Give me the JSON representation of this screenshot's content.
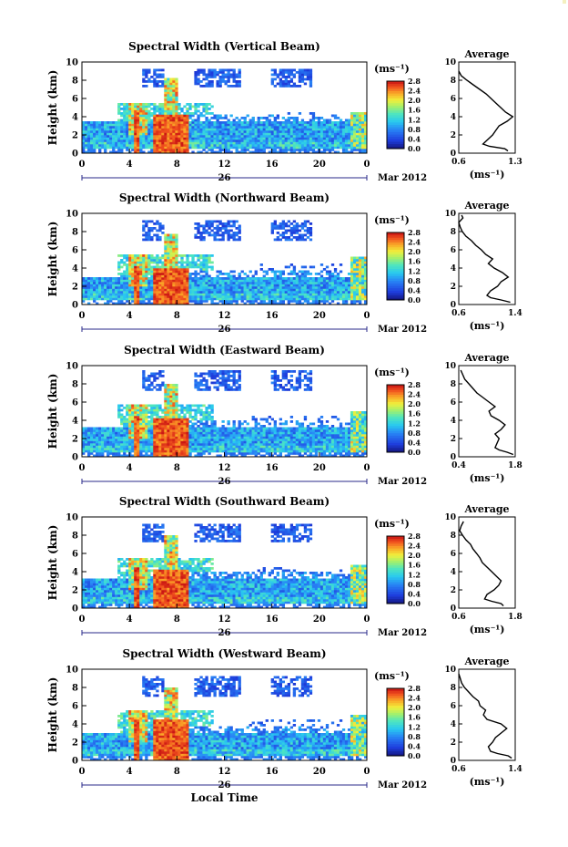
{
  "chart_data": [
    {
      "type": "heatmap",
      "title": "Spectral Width (Vertical Beam)",
      "ylabel": "Height (km)",
      "xlabel": "",
      "x_ticks": [
        "0",
        "4",
        "8",
        "12",
        "16",
        "20",
        "0"
      ],
      "y_ticks": [
        "0",
        "2",
        "4",
        "6",
        "8",
        "10"
      ],
      "xlim": [
        0,
        24
      ],
      "ylim": [
        0,
        10
      ],
      "date_label": "26",
      "month_label": "Mar 2012",
      "colorbar": {
        "unit": "(ms⁻¹)",
        "ticks": [
          "0.0",
          "0.4",
          "0.8",
          "1.2",
          "1.6",
          "2.0",
          "2.4",
          "2.8"
        ],
        "range": [
          0,
          2.8
        ]
      },
      "average": {
        "title": "Average",
        "xlabel": "(ms⁻¹)",
        "x_ticks": [
          "0.6",
          "1.3"
        ],
        "xlim": [
          0.6,
          1.3
        ],
        "y_ticks": [
          "0",
          "2",
          "4",
          "6",
          "8",
          "10"
        ],
        "profile": [
          [
            0.25,
            1.21
          ],
          [
            0.5,
            1.17
          ],
          [
            0.75,
            0.98
          ],
          [
            1.0,
            0.9
          ],
          [
            1.25,
            0.93
          ],
          [
            1.5,
            0.96
          ],
          [
            2.0,
            1.02
          ],
          [
            2.5,
            1.06
          ],
          [
            3.0,
            1.1
          ],
          [
            3.5,
            1.2
          ],
          [
            4.0,
            1.27
          ],
          [
            4.5,
            1.18
          ],
          [
            5.0,
            1.12
          ],
          [
            5.5,
            1.06
          ],
          [
            6.0,
            1.0
          ],
          [
            6.5,
            0.94
          ],
          [
            7.0,
            0.86
          ],
          [
            7.5,
            0.78
          ],
          [
            8.0,
            0.7
          ],
          [
            8.5,
            0.63
          ],
          [
            9.0,
            0.6
          ]
        ]
      },
      "fields": {
        "low_top": 3.4,
        "mid_top": 5.6,
        "high_bottom": 7.2,
        "high_top": 9.3,
        "core_top": 4.2,
        "conv_peak": 8.3,
        "right_top": 4.6
      }
    },
    {
      "type": "heatmap",
      "title": "Spectral Width (Northward Beam)",
      "ylabel": "Height (km)",
      "xlabel": "",
      "x_ticks": [
        "0",
        "4",
        "8",
        "12",
        "16",
        "20",
        "0"
      ],
      "y_ticks": [
        "0",
        "2",
        "4",
        "6",
        "8",
        "10"
      ],
      "xlim": [
        0,
        24
      ],
      "ylim": [
        0,
        10
      ],
      "date_label": "26",
      "month_label": "Mar 2012",
      "colorbar": {
        "unit": "(ms⁻¹)",
        "ticks": [
          "0.0",
          "0.4",
          "0.8",
          "1.2",
          "1.6",
          "2.0",
          "2.4",
          "2.8"
        ],
        "range": [
          0,
          2.8
        ]
      },
      "average": {
        "title": "Average",
        "xlabel": "(ms⁻¹)",
        "x_ticks": [
          "0.6",
          "1.4"
        ],
        "xlim": [
          0.6,
          1.4
        ],
        "y_ticks": [
          "0",
          "2",
          "4",
          "6",
          "8",
          "10"
        ],
        "profile": [
          [
            0.25,
            1.33
          ],
          [
            0.5,
            1.2
          ],
          [
            0.75,
            1.05
          ],
          [
            1.0,
            1.0
          ],
          [
            1.5,
            1.05
          ],
          [
            2.0,
            1.15
          ],
          [
            2.5,
            1.2
          ],
          [
            3.0,
            1.3
          ],
          [
            3.5,
            1.22
          ],
          [
            4.0,
            1.1
          ],
          [
            4.5,
            1.02
          ],
          [
            5.0,
            1.08
          ],
          [
            5.5,
            0.98
          ],
          [
            6.0,
            0.92
          ],
          [
            6.5,
            0.84
          ],
          [
            7.0,
            0.78
          ],
          [
            7.5,
            0.7
          ],
          [
            8.0,
            0.65
          ],
          [
            8.5,
            0.62
          ],
          [
            9.0,
            0.6
          ],
          [
            9.5,
            0.66
          ],
          [
            9.8,
            0.64
          ]
        ]
      },
      "fields": {
        "low_top": 3.0,
        "mid_top": 5.4,
        "high_bottom": 7.0,
        "high_top": 9.2,
        "core_top": 4.1,
        "conv_peak": 7.8,
        "right_top": 5.2
      }
    },
    {
      "type": "heatmap",
      "title": "Spectral Width (Eastward Beam)",
      "ylabel": "Height (km)",
      "xlabel": "",
      "x_ticks": [
        "0",
        "4",
        "8",
        "12",
        "16",
        "20",
        "0"
      ],
      "y_ticks": [
        "0",
        "2",
        "4",
        "6",
        "8",
        "10"
      ],
      "xlim": [
        0,
        24
      ],
      "ylim": [
        0,
        10
      ],
      "date_label": "26",
      "month_label": "Mar 2012",
      "colorbar": {
        "unit": "(ms⁻¹)",
        "ticks": [
          "0.0",
          "0.4",
          "0.8",
          "1.2",
          "1.6",
          "2.0",
          "2.4",
          "2.8"
        ],
        "range": [
          0,
          2.8
        ]
      },
      "average": {
        "title": "Average",
        "xlabel": "(ms⁻¹)",
        "x_ticks": [
          "0.4",
          "1.8"
        ],
        "xlim": [
          0.4,
          1.8
        ],
        "y_ticks": [
          "0",
          "2",
          "4",
          "6",
          "8",
          "10"
        ],
        "profile": [
          [
            0.25,
            1.75
          ],
          [
            0.5,
            1.6
          ],
          [
            0.75,
            1.4
          ],
          [
            1.0,
            1.3
          ],
          [
            1.5,
            1.35
          ],
          [
            2.0,
            1.4
          ],
          [
            2.5,
            1.3
          ],
          [
            3.0,
            1.45
          ],
          [
            3.5,
            1.55
          ],
          [
            4.0,
            1.4
          ],
          [
            4.5,
            1.2
          ],
          [
            5.0,
            1.15
          ],
          [
            5.5,
            1.3
          ],
          [
            6.0,
            1.15
          ],
          [
            6.5,
            1.0
          ],
          [
            7.0,
            0.85
          ],
          [
            7.5,
            0.75
          ],
          [
            8.0,
            0.65
          ],
          [
            8.5,
            0.55
          ],
          [
            9.0,
            0.5
          ],
          [
            9.5,
            0.45
          ]
        ]
      },
      "fields": {
        "low_top": 3.2,
        "mid_top": 5.8,
        "high_bottom": 7.3,
        "high_top": 9.4,
        "core_top": 4.3,
        "conv_peak": 8.0,
        "right_top": 5.0
      }
    },
    {
      "type": "heatmap",
      "title": "Spectral Width (Southward Beam)",
      "ylabel": "Height (km)",
      "xlabel": "",
      "x_ticks": [
        "0",
        "4",
        "8",
        "12",
        "16",
        "20",
        "0"
      ],
      "y_ticks": [
        "0",
        "2",
        "4",
        "6",
        "8",
        "10"
      ],
      "xlim": [
        0,
        24
      ],
      "ylim": [
        0,
        10
      ],
      "date_label": "26",
      "month_label": "Mar 2012",
      "colorbar": {
        "unit": "(ms⁻¹)",
        "ticks": [
          "0.0",
          "0.4",
          "0.8",
          "1.2",
          "1.6",
          "2.0",
          "2.4",
          "2.8"
        ],
        "range": [
          0,
          2.8
        ]
      },
      "average": {
        "title": "Average",
        "xlabel": "(ms⁻¹)",
        "x_ticks": [
          "0.6",
          "1.8"
        ],
        "xlim": [
          0.6,
          1.8
        ],
        "y_ticks": [
          "0",
          "2",
          "4",
          "6",
          "8",
          "10"
        ],
        "profile": [
          [
            0.25,
            1.55
          ],
          [
            0.5,
            1.5
          ],
          [
            0.75,
            1.3
          ],
          [
            1.0,
            1.15
          ],
          [
            1.5,
            1.2
          ],
          [
            2.0,
            1.35
          ],
          [
            2.5,
            1.45
          ],
          [
            3.0,
            1.5
          ],
          [
            3.5,
            1.4
          ],
          [
            4.0,
            1.3
          ],
          [
            4.5,
            1.2
          ],
          [
            5.0,
            1.1
          ],
          [
            5.5,
            1.05
          ],
          [
            6.0,
            0.98
          ],
          [
            6.5,
            0.9
          ],
          [
            7.0,
            0.85
          ],
          [
            7.5,
            0.75
          ],
          [
            8.0,
            0.68
          ],
          [
            8.5,
            0.62
          ],
          [
            9.0,
            0.65
          ],
          [
            9.5,
            0.7
          ]
        ]
      },
      "fields": {
        "low_top": 3.3,
        "mid_top": 5.5,
        "high_bottom": 7.2,
        "high_top": 9.3,
        "core_top": 4.2,
        "conv_peak": 8.0,
        "right_top": 4.8
      }
    },
    {
      "type": "heatmap",
      "title": "Spectral Width (Westward Beam)",
      "ylabel": "Height (km)",
      "xlabel": "Local Time",
      "x_ticks": [
        "0",
        "4",
        "8",
        "12",
        "16",
        "20",
        "0"
      ],
      "y_ticks": [
        "0",
        "2",
        "4",
        "6",
        "8",
        "10"
      ],
      "xlim": [
        0,
        24
      ],
      "ylim": [
        0,
        10
      ],
      "date_label": "26",
      "month_label": "Mar 2012",
      "colorbar": {
        "unit": "(ms⁻¹)",
        "ticks": [
          "0.0",
          "0.4",
          "0.8",
          "1.2",
          "1.6",
          "2.0",
          "2.4",
          "2.8"
        ],
        "range": [
          0,
          2.8
        ]
      },
      "average": {
        "title": "Average",
        "xlabel": "(ms⁻¹)",
        "x_ticks": [
          "0.6",
          "1.4"
        ],
        "xlim": [
          0.6,
          1.4
        ],
        "y_ticks": [
          "0",
          "2",
          "4",
          "6",
          "8",
          "10"
        ],
        "profile": [
          [
            0.25,
            1.35
          ],
          [
            0.5,
            1.3
          ],
          [
            0.75,
            1.15
          ],
          [
            1.0,
            1.05
          ],
          [
            1.5,
            1.02
          ],
          [
            2.0,
            1.08
          ],
          [
            2.5,
            1.12
          ],
          [
            3.0,
            1.2
          ],
          [
            3.5,
            1.28
          ],
          [
            4.0,
            1.2
          ],
          [
            4.5,
            1.0
          ],
          [
            5.0,
            0.95
          ],
          [
            5.5,
            0.98
          ],
          [
            6.0,
            0.9
          ],
          [
            6.5,
            0.88
          ],
          [
            7.0,
            0.8
          ],
          [
            7.5,
            0.74
          ],
          [
            8.0,
            0.68
          ],
          [
            8.5,
            0.64
          ],
          [
            9.0,
            0.62
          ],
          [
            9.5,
            0.6
          ]
        ]
      },
      "fields": {
        "low_top": 3.0,
        "mid_top": 5.6,
        "high_bottom": 7.1,
        "high_top": 9.2,
        "core_top": 4.4,
        "conv_peak": 8.0,
        "right_top": 5.0
      }
    }
  ]
}
